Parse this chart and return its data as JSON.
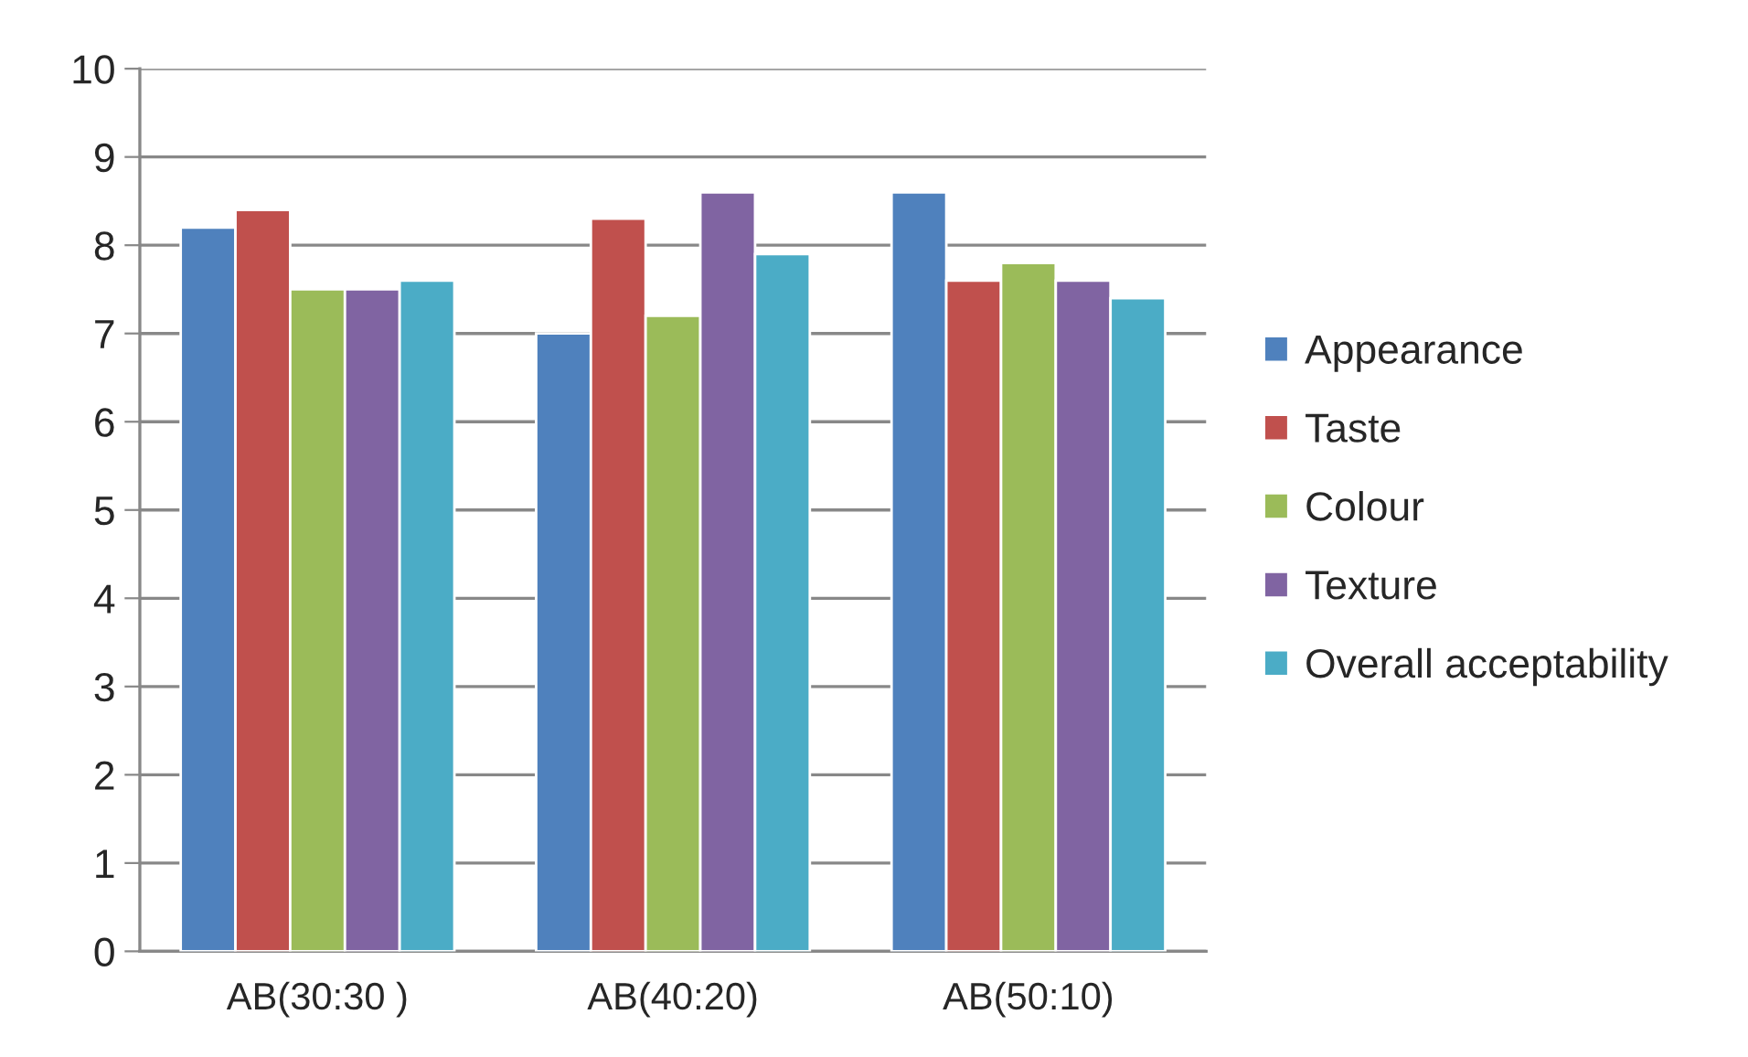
{
  "chart_data": {
    "type": "bar",
    "categories": [
      "AB(30:30 )",
      "AB(40:20)",
      "AB(50:10)"
    ],
    "series": [
      {
        "name": "Appearance",
        "color": "#4f81bd",
        "values": [
          8.2,
          7.0,
          8.6
        ]
      },
      {
        "name": "Taste",
        "color": "#c0504d",
        "values": [
          8.4,
          8.3,
          7.6
        ]
      },
      {
        "name": "Colour",
        "color": "#9bbb59",
        "values": [
          7.5,
          7.2,
          7.8
        ]
      },
      {
        "name": "Texture",
        "color": "#8064a2",
        "values": [
          7.5,
          8.6,
          7.6
        ]
      },
      {
        "name": "Overall acceptability",
        "color": "#4bacc6",
        "values": [
          7.6,
          7.9,
          7.4
        ]
      }
    ],
    "ylim": [
      0,
      10
    ],
    "yticks": [
      0,
      1,
      2,
      3,
      4,
      5,
      6,
      7,
      8,
      9,
      10
    ],
    "grid": "y",
    "legend": "right"
  }
}
